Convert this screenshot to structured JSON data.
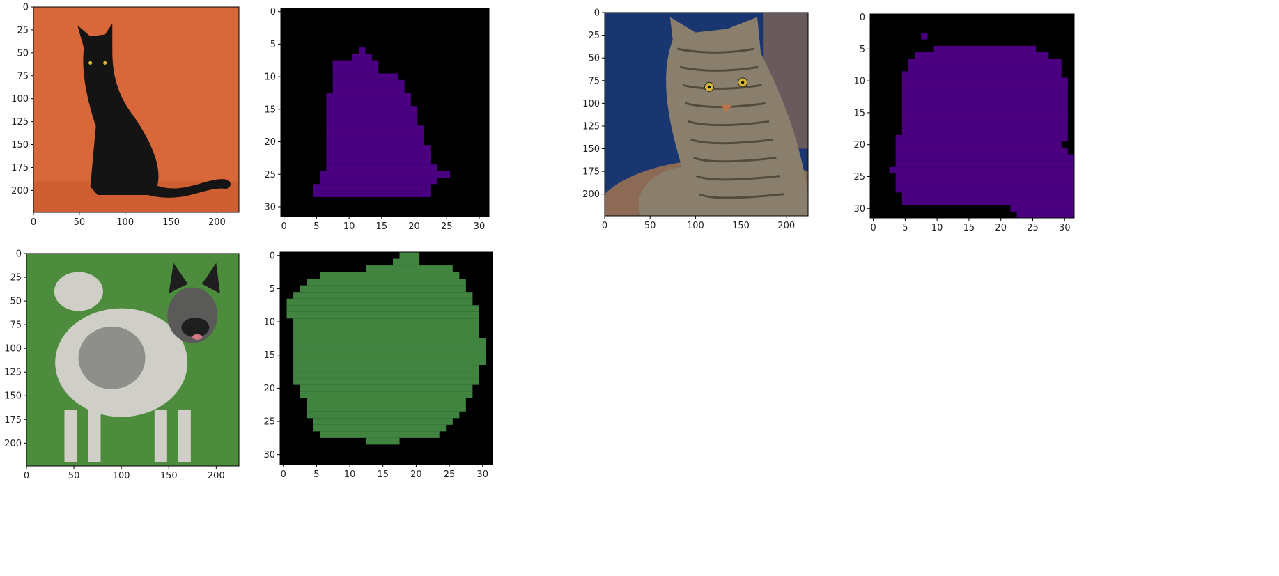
{
  "page": {
    "background": "#ffffff"
  },
  "chart_data": [
    {
      "type": "image",
      "content": "black cat sitting, orange background",
      "palette": {
        "background": "#d8673a",
        "subject": "#141414",
        "floor": "#c5552a",
        "eye": "#d2b449"
      },
      "xlim": [
        0,
        224
      ],
      "ylim": [
        224,
        0
      ],
      "xticks": [
        0,
        50,
        100,
        150,
        200
      ],
      "yticks": [
        0,
        25,
        50,
        75,
        100,
        125,
        150,
        175,
        200
      ]
    },
    {
      "type": "heatmap",
      "content": "segmentation mask (cat)",
      "colors": {
        "background": "#000000",
        "mask": "#4b0082"
      },
      "grid": [
        32,
        32
      ],
      "xlim": [
        0,
        32
      ],
      "ylim": [
        32,
        0
      ],
      "xticks": [
        0,
        5,
        10,
        15,
        20,
        25,
        30
      ],
      "yticks": [
        0,
        5,
        10,
        15,
        20,
        25,
        30
      ],
      "mask_rows": [
        [
          6,
          12,
          12
        ],
        [
          7,
          11,
          13
        ],
        [
          8,
          8,
          14
        ],
        [
          8,
          8,
          14
        ],
        [
          8,
          8,
          14
        ],
        [
          8,
          8,
          14
        ],
        [
          9,
          8,
          14
        ],
        [
          10,
          8,
          17
        ],
        [
          11,
          8,
          18
        ],
        [
          12,
          8,
          18
        ],
        [
          13,
          7,
          19
        ],
        [
          14,
          7,
          19
        ],
        [
          15,
          7,
          20
        ],
        [
          16,
          7,
          20
        ],
        [
          17,
          7,
          20
        ],
        [
          18,
          7,
          21
        ],
        [
          19,
          7,
          21
        ],
        [
          20,
          7,
          21
        ],
        [
          21,
          7,
          22
        ],
        [
          22,
          7,
          22
        ],
        [
          23,
          7,
          22
        ],
        [
          24,
          7,
          23
        ],
        [
          25,
          6,
          25
        ],
        [
          26,
          6,
          23
        ],
        [
          27,
          5,
          22
        ],
        [
          28,
          5,
          22
        ]
      ]
    },
    {
      "type": "image",
      "content": "tabby cat lying on a cushion, dark blue background",
      "palette": {
        "background": "#1a3670",
        "subject": "#8a7f6d",
        "stripe": "#3d3428",
        "cushion": "#8c6a55",
        "eye": "#d8b83a"
      },
      "xlim": [
        0,
        224
      ],
      "ylim": [
        224,
        0
      ],
      "xticks": [
        0,
        50,
        100,
        150,
        200
      ],
      "yticks": [
        0,
        25,
        50,
        75,
        100,
        125,
        150,
        175,
        200
      ]
    },
    {
      "type": "heatmap",
      "content": "segmentation mask (cat)",
      "colors": {
        "background": "#000000",
        "mask": "#4b0082"
      },
      "grid": [
        32,
        32
      ],
      "xlim": [
        0,
        32
      ],
      "ylim": [
        32,
        0
      ],
      "xticks": [
        0,
        5,
        10,
        15,
        20,
        25,
        30
      ],
      "yticks": [
        0,
        5,
        10,
        15,
        20,
        25,
        30
      ],
      "mask_rows": [
        [
          3,
          8,
          8
        ],
        [
          5,
          10,
          25
        ],
        [
          6,
          7,
          27
        ],
        [
          7,
          6,
          29
        ],
        [
          8,
          6,
          29
        ],
        [
          9,
          5,
          29
        ],
        [
          10,
          5,
          30
        ],
        [
          11,
          5,
          30
        ],
        [
          12,
          5,
          30
        ],
        [
          13,
          5,
          30
        ],
        [
          14,
          5,
          30
        ],
        [
          15,
          5,
          30
        ],
        [
          16,
          5,
          30
        ],
        [
          17,
          5,
          30
        ],
        [
          18,
          5,
          30
        ],
        [
          19,
          4,
          30
        ],
        [
          20,
          4,
          29
        ],
        [
          21,
          4,
          30
        ],
        [
          22,
          4,
          31
        ],
        [
          23,
          4,
          31
        ],
        [
          24,
          3,
          31
        ],
        [
          25,
          4,
          31
        ],
        [
          26,
          4,
          31
        ],
        [
          27,
          4,
          31
        ],
        [
          28,
          5,
          31
        ],
        [
          29,
          5,
          31
        ],
        [
          30,
          22,
          31
        ],
        [
          31,
          23,
          31
        ]
      ]
    },
    {
      "type": "image",
      "content": "keeshond dog standing on grass",
      "palette": {
        "background": "#4d8c3c",
        "subject": "#cfcfc8",
        "shade": "#5a5a58",
        "face": "#1e1e1e",
        "tongue": "#d47a86"
      },
      "xlim": [
        0,
        224
      ],
      "ylim": [
        224,
        0
      ],
      "xticks": [
        0,
        50,
        100,
        150,
        200
      ],
      "yticks": [
        0,
        25,
        50,
        75,
        100,
        125,
        150,
        175,
        200
      ]
    },
    {
      "type": "heatmap",
      "content": "segmentation mask (dog)",
      "colors": {
        "background": "#000000",
        "mask": "#418440"
      },
      "grid": [
        32,
        32
      ],
      "xlim": [
        0,
        32
      ],
      "ylim": [
        32,
        0
      ],
      "xticks": [
        0,
        5,
        10,
        15,
        20,
        25,
        30
      ],
      "yticks": [
        0,
        5,
        10,
        15,
        20,
        25,
        30
      ],
      "mask_rows": [
        [
          0,
          18,
          20
        ],
        [
          1,
          17,
          20
        ],
        [
          2,
          13,
          25
        ],
        [
          3,
          6,
          26
        ],
        [
          4,
          4,
          27
        ],
        [
          5,
          3,
          27
        ],
        [
          6,
          2,
          28
        ],
        [
          7,
          1,
          28
        ],
        [
          8,
          1,
          29
        ],
        [
          9,
          1,
          29
        ],
        [
          10,
          2,
          29
        ],
        [
          11,
          2,
          29
        ],
        [
          12,
          2,
          29
        ],
        [
          13,
          2,
          30
        ],
        [
          14,
          2,
          30
        ],
        [
          15,
          2,
          30
        ],
        [
          16,
          2,
          30
        ],
        [
          17,
          2,
          29
        ],
        [
          18,
          2,
          29
        ],
        [
          19,
          2,
          29
        ],
        [
          20,
          3,
          28
        ],
        [
          21,
          3,
          28
        ],
        [
          22,
          4,
          27
        ],
        [
          23,
          4,
          27
        ],
        [
          24,
          4,
          26
        ],
        [
          25,
          5,
          25
        ],
        [
          26,
          5,
          24
        ],
        [
          27,
          6,
          23
        ],
        [
          28,
          13,
          17
        ]
      ]
    }
  ]
}
